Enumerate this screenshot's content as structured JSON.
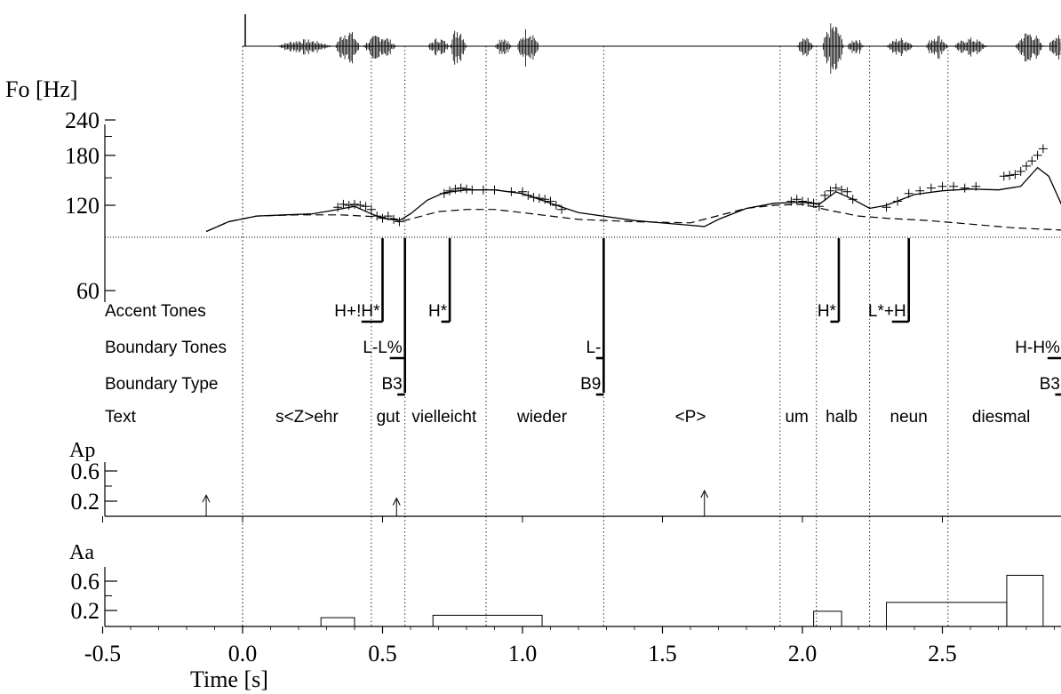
{
  "chart_data": {
    "type": "line",
    "fo_axis": {
      "label": "Fo [Hz]",
      "ticks": [
        "240",
        "180",
        "120",
        "60"
      ],
      "tick_values": [
        240,
        180,
        120,
        60
      ],
      "scale": "log",
      "baseline_hz": 97
    },
    "time_axis": {
      "label": "Time [s]",
      "ticks": [
        "-0.5",
        "0.0",
        "0.5",
        "1.0",
        "1.5",
        "2.0",
        "2.5"
      ],
      "tick_values": [
        -0.5,
        0.0,
        0.5,
        1.0,
        1.5,
        2.0,
        2.5
      ],
      "range": [
        -0.5,
        2.93
      ]
    },
    "segment_boundaries": [
      0.0,
      0.46,
      0.58,
      0.87,
      1.29,
      1.92,
      2.05,
      2.24,
      2.52,
      2.93
    ],
    "fo_points": [
      [
        0.34,
        118
      ],
      [
        0.36,
        121
      ],
      [
        0.38,
        120
      ],
      [
        0.4,
        121
      ],
      [
        0.42,
        120
      ],
      [
        0.44,
        119
      ],
      [
        0.46,
        116
      ],
      [
        0.48,
        110
      ],
      [
        0.5,
        108
      ],
      [
        0.52,
        110
      ],
      [
        0.54,
        107
      ],
      [
        0.56,
        105
      ],
      [
        0.72,
        132
      ],
      [
        0.74,
        135
      ],
      [
        0.76,
        137
      ],
      [
        0.78,
        138
      ],
      [
        0.8,
        137
      ],
      [
        0.82,
        136
      ],
      [
        0.86,
        136
      ],
      [
        0.9,
        136
      ],
      [
        0.96,
        134
      ],
      [
        1.0,
        134
      ],
      [
        1.02,
        130
      ],
      [
        1.04,
        128
      ],
      [
        1.06,
        127
      ],
      [
        1.08,
        126
      ],
      [
        1.1,
        124
      ],
      [
        1.12,
        120
      ],
      [
        1.14,
        116
      ],
      [
        1.96,
        124
      ],
      [
        1.98,
        126
      ],
      [
        2.0,
        124
      ],
      [
        2.02,
        123
      ],
      [
        2.04,
        122
      ],
      [
        2.06,
        119
      ],
      [
        2.08,
        130
      ],
      [
        2.1,
        135
      ],
      [
        2.12,
        138
      ],
      [
        2.14,
        136
      ],
      [
        2.16,
        134
      ],
      [
        2.18,
        126
      ],
      [
        2.3,
        118
      ],
      [
        2.34,
        124
      ],
      [
        2.38,
        132
      ],
      [
        2.42,
        135
      ],
      [
        2.46,
        138
      ],
      [
        2.5,
        140
      ],
      [
        2.54,
        140
      ],
      [
        2.58,
        138
      ],
      [
        2.62,
        140
      ],
      [
        2.72,
        152
      ],
      [
        2.74,
        153
      ],
      [
        2.76,
        154
      ],
      [
        2.78,
        158
      ],
      [
        2.8,
        165
      ],
      [
        2.82,
        172
      ],
      [
        2.84,
        180
      ],
      [
        2.86,
        190
      ]
    ],
    "fo_model": [
      [
        -0.13,
        97
      ],
      [
        -0.05,
        105
      ],
      [
        0.05,
        110
      ],
      [
        0.15,
        111
      ],
      [
        0.25,
        112
      ],
      [
        0.32,
        115
      ],
      [
        0.4,
        119
      ],
      [
        0.45,
        113
      ],
      [
        0.5,
        108
      ],
      [
        0.56,
        106
      ],
      [
        0.6,
        112
      ],
      [
        0.66,
        125
      ],
      [
        0.72,
        133
      ],
      [
        0.8,
        136
      ],
      [
        0.9,
        136
      ],
      [
        1.0,
        132
      ],
      [
        1.1,
        122
      ],
      [
        1.2,
        113
      ],
      [
        1.4,
        106
      ],
      [
        1.65,
        101
      ],
      [
        1.7,
        107
      ],
      [
        1.8,
        117
      ],
      [
        1.9,
        122
      ],
      [
        2.0,
        123
      ],
      [
        2.06,
        121
      ],
      [
        2.12,
        134
      ],
      [
        2.18,
        126
      ],
      [
        2.24,
        117
      ],
      [
        2.3,
        120
      ],
      [
        2.4,
        131
      ],
      [
        2.5,
        135
      ],
      [
        2.6,
        137
      ],
      [
        2.7,
        136
      ],
      [
        2.78,
        140
      ],
      [
        2.84,
        163
      ],
      [
        2.88,
        152
      ],
      [
        2.93,
        118
      ]
    ],
    "phrase_curve": [
      [
        -0.13,
        97
      ],
      [
        -0.05,
        105
      ],
      [
        0.05,
        110
      ],
      [
        0.2,
        111
      ],
      [
        0.35,
        111
      ],
      [
        0.5,
        109
      ],
      [
        0.58,
        106
      ],
      [
        0.7,
        114
      ],
      [
        0.8,
        116
      ],
      [
        0.9,
        116
      ],
      [
        1.0,
        113
      ],
      [
        1.1,
        110
      ],
      [
        1.2,
        107
      ],
      [
        1.4,
        105
      ],
      [
        1.6,
        104
      ],
      [
        1.8,
        117
      ],
      [
        1.9,
        120
      ],
      [
        2.0,
        121
      ],
      [
        2.1,
        115
      ],
      [
        2.2,
        110
      ],
      [
        2.3,
        108
      ],
      [
        2.45,
        106
      ],
      [
        2.6,
        103
      ],
      [
        2.75,
        100
      ],
      [
        2.93,
        98
      ]
    ],
    "tiers": [
      {
        "label": "Accent Tones",
        "entries": [
          {
            "text": "H+!H*",
            "t": 0.5
          },
          {
            "text": "H*",
            "t": 0.74
          },
          {
            "text": "H*",
            "t": 2.13
          },
          {
            "text": "L*+H",
            "t": 2.38
          }
        ]
      },
      {
        "label": "Boundary Tones",
        "entries": [
          {
            "text": "L-L%",
            "t": 0.58
          },
          {
            "text": "L-",
            "t": 1.29
          },
          {
            "text": "H-H%",
            "t": 2.93
          }
        ]
      },
      {
        "label": "Boundary Type",
        "entries": [
          {
            "text": "B3",
            "t": 0.58
          },
          {
            "text": "B9",
            "t": 1.29
          },
          {
            "text": "B3",
            "t": 2.93
          }
        ]
      },
      {
        "label": "Text",
        "entries": [
          {
            "text": "s<Z>ehr",
            "t": 0.23
          },
          {
            "text": "gut",
            "t": 0.52
          },
          {
            "text": "vielleicht",
            "t": 0.72
          },
          {
            "text": "wieder",
            "t": 1.07
          },
          {
            "text": "<P>",
            "t": 1.6
          },
          {
            "text": "um",
            "t": 1.98
          },
          {
            "text": "halb",
            "t": 2.14
          },
          {
            "text": "neun",
            "t": 2.38
          },
          {
            "text": "diesmal",
            "t": 2.71
          }
        ]
      }
    ],
    "ap": {
      "label": "Ap",
      "ticks": [
        "0.6",
        "0.2"
      ],
      "tick_values": [
        0.6,
        0.2
      ],
      "ylim": [
        0,
        0.8
      ],
      "commands": [
        [
          -0.13,
          0.28
        ],
        [
          0.55,
          0.24
        ],
        [
          1.65,
          0.34
        ]
      ]
    },
    "aa": {
      "label": "Aa",
      "ticks": [
        "0.6",
        "0.2"
      ],
      "tick_values": [
        0.6,
        0.2
      ],
      "ylim": [
        0,
        0.8
      ],
      "commands": [
        [
          0.28,
          0.4,
          0.11
        ],
        [
          0.68,
          1.07,
          0.14
        ],
        [
          2.04,
          2.14,
          0.19
        ],
        [
          2.3,
          2.73,
          0.31
        ],
        [
          2.73,
          2.86,
          0.68
        ]
      ]
    }
  }
}
